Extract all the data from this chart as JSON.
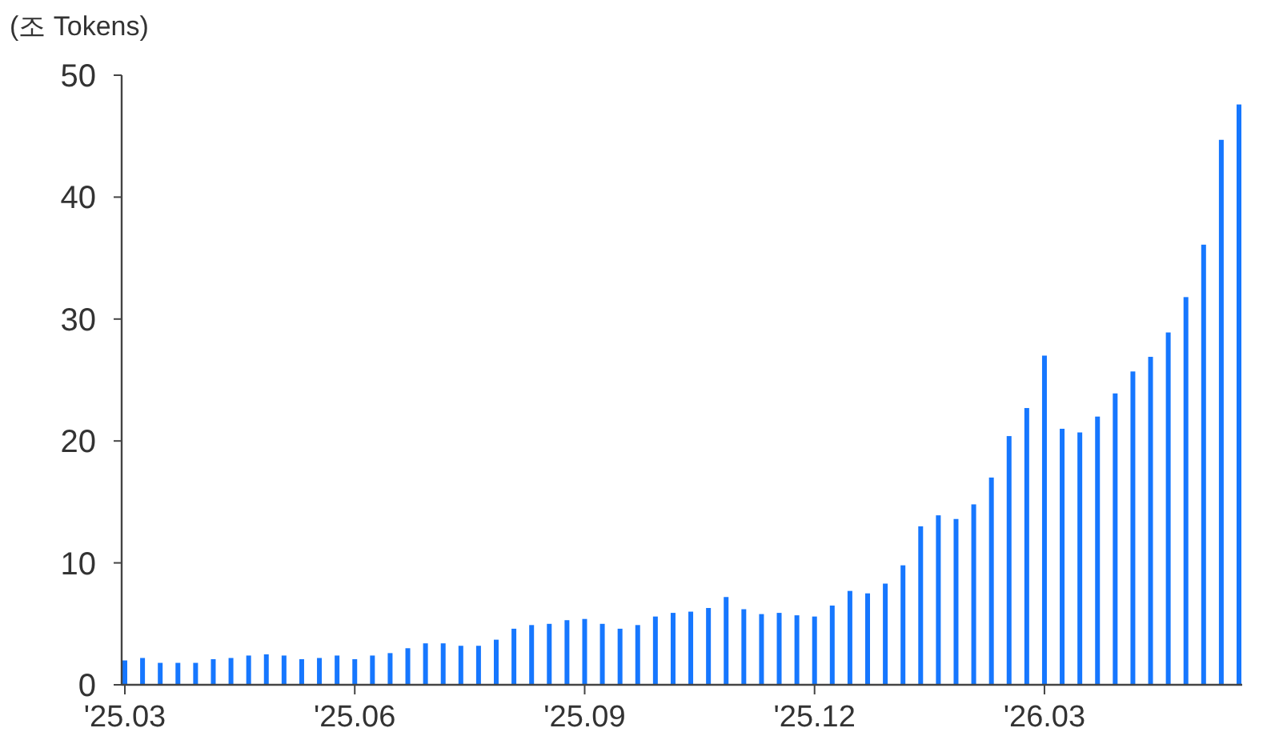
{
  "chart_data": {
    "type": "bar",
    "ylabel": "(조 Tokens)",
    "categories": [
      "'25.03",
      null,
      null,
      null,
      null,
      null,
      null,
      null,
      null,
      null,
      null,
      null,
      null,
      "'25.06",
      null,
      null,
      null,
      null,
      null,
      null,
      null,
      null,
      null,
      null,
      null,
      null,
      "'25.09",
      null,
      null,
      null,
      null,
      null,
      null,
      null,
      null,
      null,
      null,
      null,
      null,
      "'25.12",
      null,
      null,
      null,
      null,
      null,
      null,
      null,
      null,
      null,
      null,
      null,
      null,
      "'26.03",
      null,
      null,
      null,
      null,
      null,
      null,
      null,
      null,
      null,
      null,
      null
    ],
    "values": [
      2.0,
      2.2,
      1.8,
      1.8,
      1.8,
      2.1,
      2.2,
      2.4,
      2.5,
      2.4,
      2.1,
      2.2,
      2.4,
      2.1,
      2.4,
      2.6,
      3.0,
      3.4,
      3.4,
      3.2,
      3.2,
      3.7,
      4.6,
      4.9,
      5.0,
      5.3,
      5.4,
      5.0,
      4.6,
      4.9,
      5.6,
      5.9,
      6.0,
      6.3,
      7.2,
      6.2,
      5.8,
      5.9,
      5.7,
      5.6,
      6.5,
      7.7,
      7.5,
      8.3,
      9.8,
      13.0,
      13.9,
      13.6,
      14.8,
      17.0,
      20.4,
      22.7,
      27.0,
      21.0,
      20.7,
      22.0,
      23.9,
      25.7,
      26.9,
      28.9,
      31.8,
      36.1,
      44.7,
      47.6
    ],
    "color": "#1677ff",
    "ylim": [
      0,
      50
    ],
    "yticks": [
      0,
      10,
      20,
      30,
      40,
      50
    ]
  }
}
